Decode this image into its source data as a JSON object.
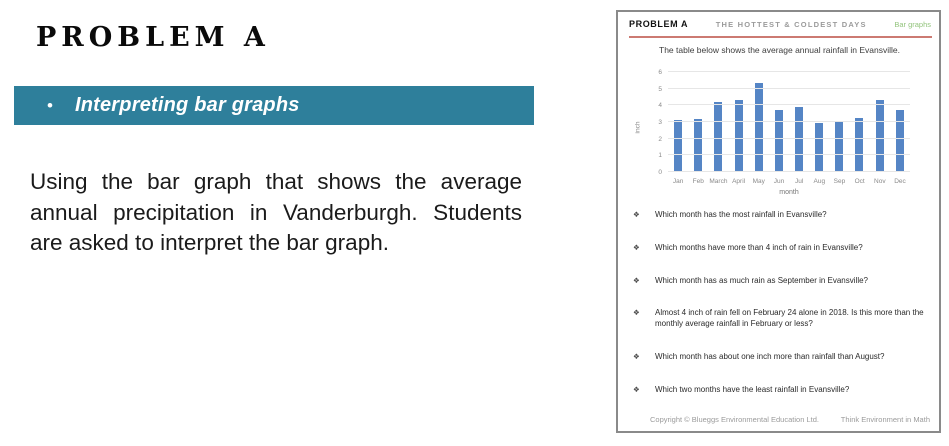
{
  "slide": {
    "title": "PROBLEM A",
    "banner": {
      "bullet": "•",
      "label": "Interpreting bar graphs",
      "bg_color": "#2e7f9b"
    },
    "body_text": "Using the bar graph that shows the average annual precipitation in Vanderburgh. Students are asked to interpret the bar graph."
  },
  "worksheet": {
    "header": {
      "left": "PROBLEM A",
      "center": "THE HOTTEST & COLDEST DAYS",
      "right": "Bar graphs",
      "right_color": "#93c47d",
      "divider_color": "#cc7a72"
    },
    "intro": "The table below shows the average annual rainfall in Evansville.",
    "bullet_glyph": "❖",
    "questions": [
      "Which month has the most rainfall in Evansville?",
      "Which months have more than 4 inch of rain in Evansville?",
      "Which month has as much rain as September in Evansville?",
      "Almost 4 inch of rain fell on February 24 alone in 2018. Is this more than the monthly average rainfall in February or less?",
      "Which month has about one inch more than rainfall than August?",
      "Which two months have the least rainfall in Evansville?"
    ],
    "footer": {
      "left": "Copyright © Blueggs Environmental Education Ltd.",
      "right": "Think Environment in Math"
    }
  },
  "chart_data": {
    "type": "bar",
    "title": "The table below shows the average annual rainfall in Evansville.",
    "categories": [
      "Jan",
      "Feb",
      "March",
      "April",
      "May",
      "Jun",
      "Jul",
      "Aug",
      "Sep",
      "Oct",
      "Nov",
      "Dec"
    ],
    "values": [
      3.1,
      3.2,
      4.2,
      4.35,
      5.35,
      3.75,
      3.9,
      2.95,
      3.0,
      3.25,
      4.3,
      3.75
    ],
    "xlabel": "month",
    "ylabel": "inch",
    "ylim": [
      0,
      6
    ],
    "yticks": [
      0,
      1,
      2,
      3,
      4,
      5,
      6
    ],
    "grid": true,
    "legend": false,
    "bar_color": "#5585c5"
  }
}
